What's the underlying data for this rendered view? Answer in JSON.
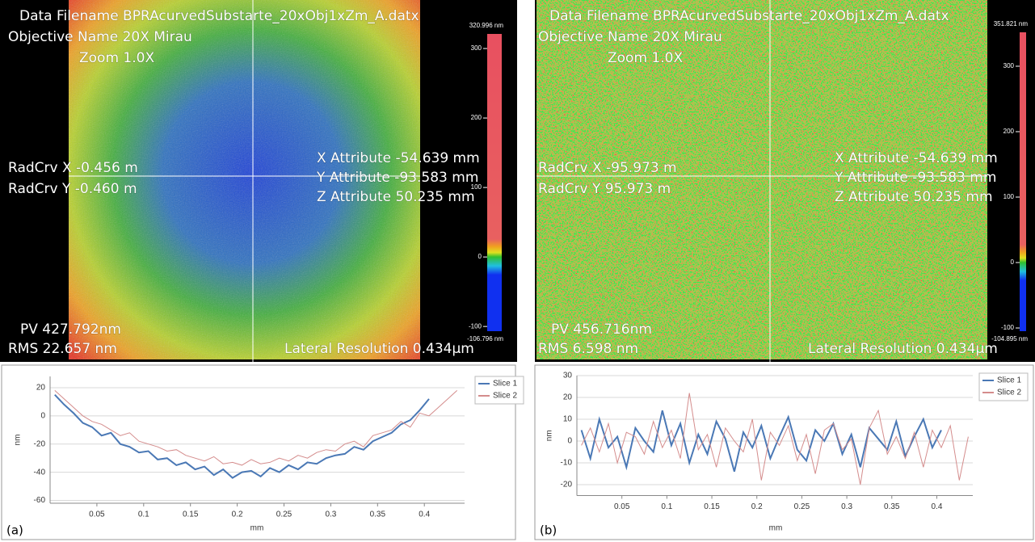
{
  "panel_labels": [
    "(a)",
    "(b)"
  ],
  "maps": [
    {
      "filename": "Data Filename BPRAcurvedSubstarte_20xObj1xZm_A.datx",
      "objective": "Objective Name 20X Mirau",
      "zoom": "Zoom 1.0X",
      "radcrv_x": "RadCrv X -0.456  m",
      "radcrv_y": "RadCrv Y -0.460  m",
      "x_attr": "X Attribute -54.639  mm",
      "y_attr": "Y Attribute -93.583  mm",
      "z_attr": "Z Attribute  50.235  mm",
      "pv": "PV 427.792nm",
      "rms": "RMS 22.657  nm",
      "lateral": "Lateral Resolution 0.434µm",
      "colorbar": {
        "max_label": "320.996 nm",
        "min_label": "-106.796 nm",
        "lim": [
          -106.796,
          320.996
        ],
        "ticks": [
          300,
          200,
          100,
          0,
          -100
        ]
      }
    },
    {
      "filename": "Data Filename BPRAcurvedSubstarte_20xObj1xZm_A.datx",
      "objective": "Objective Name 20X Mirau",
      "zoom": "Zoom 1.0X",
      "radcrv_x": "RadCrv X -95.973  m",
      "radcrv_y": "RadCrv Y  95.973  m",
      "x_attr": "X Attribute -54.639  mm",
      "y_attr": "Y Attribute -93.583  mm",
      "z_attr": "Z Attribute  50.235  mm",
      "pv": "PV 456.716nm",
      "rms": "RMS 6.598    nm",
      "lateral": "Lateral Resolution 0.434µm",
      "colorbar": {
        "max_label": "351.821 nm",
        "min_label": "-104.895 nm",
        "lim": [
          -104.895,
          351.821
        ],
        "ticks": [
          300,
          200,
          100,
          0,
          -100
        ]
      }
    }
  ],
  "chart_data": [
    {
      "type": "line",
      "x_label": "mm",
      "y_label": "nm",
      "x": [
        0.005,
        0.015,
        0.025,
        0.035,
        0.045,
        0.055,
        0.065,
        0.075,
        0.085,
        0.095,
        0.105,
        0.115,
        0.125,
        0.135,
        0.145,
        0.155,
        0.165,
        0.175,
        0.185,
        0.195,
        0.205,
        0.215,
        0.225,
        0.235,
        0.245,
        0.255,
        0.265,
        0.275,
        0.285,
        0.295,
        0.305,
        0.315,
        0.325,
        0.335,
        0.345,
        0.355,
        0.365,
        0.375,
        0.385,
        0.395,
        0.405,
        0.415,
        0.425,
        0.435
      ],
      "series": [
        {
          "name": "Slice 1",
          "color": "#4a78b5",
          "values": [
            15,
            8,
            2,
            -5,
            -8,
            -14,
            -12,
            -20,
            -22,
            -26,
            -25,
            -31,
            -30,
            -35,
            -33,
            -38,
            -36,
            -42,
            -38,
            -44,
            -40,
            -39,
            -43,
            -37,
            -40,
            -35,
            -38,
            -33,
            -34,
            -30,
            -28,
            -27,
            -22,
            -24,
            -18,
            -15,
            -12,
            -6,
            -3,
            4,
            12,
            null,
            null,
            null
          ]
        },
        {
          "name": "Slice 2",
          "color": "#d48c8c",
          "values": [
            18,
            12,
            6,
            0,
            -4,
            -6,
            -10,
            -14,
            -12,
            -18,
            -20,
            -22,
            -25,
            -24,
            -28,
            -30,
            -32,
            -29,
            -34,
            -33,
            -35,
            -31,
            -34,
            -33,
            -30,
            -32,
            -28,
            -30,
            -26,
            -24,
            -25,
            -20,
            -18,
            -22,
            -14,
            -12,
            -10,
            -4,
            -8,
            2,
            0,
            6,
            12,
            18
          ]
        }
      ],
      "xlim": [
        0,
        0.443
      ],
      "xticks": [
        0.05,
        0.1,
        0.15,
        0.2,
        0.25,
        0.3,
        0.35,
        0.4
      ],
      "ylim": [
        -62,
        28
      ],
      "yticks": [
        -60,
        -40,
        -20,
        0,
        20
      ],
      "grid": true,
      "legend": "right"
    },
    {
      "type": "line",
      "x_label": "mm",
      "y_label": "nm",
      "x": [
        0.005,
        0.015,
        0.025,
        0.035,
        0.045,
        0.055,
        0.065,
        0.075,
        0.085,
        0.095,
        0.105,
        0.115,
        0.125,
        0.135,
        0.145,
        0.155,
        0.165,
        0.175,
        0.185,
        0.195,
        0.205,
        0.215,
        0.225,
        0.235,
        0.245,
        0.255,
        0.265,
        0.275,
        0.285,
        0.295,
        0.305,
        0.315,
        0.325,
        0.335,
        0.345,
        0.355,
        0.365,
        0.375,
        0.385,
        0.395,
        0.405,
        0.415,
        0.425,
        0.435
      ],
      "series": [
        {
          "name": "Slice 1",
          "color": "#4a78b5",
          "values": [
            5,
            -8,
            10,
            -3,
            2,
            -12,
            6,
            0,
            -5,
            14,
            -2,
            8,
            -10,
            3,
            -6,
            9,
            1,
            -14,
            4,
            -3,
            7,
            -8,
            2,
            11,
            -4,
            -9,
            5,
            0,
            8,
            -6,
            3,
            -12,
            6,
            1,
            -4,
            9,
            -7,
            2,
            10,
            -3,
            5,
            null,
            null,
            null
          ]
        },
        {
          "name": "Slice 2",
          "color": "#d48c8c",
          "values": [
            -2,
            6,
            -5,
            8,
            -10,
            4,
            2,
            -6,
            9,
            -3,
            5,
            -8,
            22,
            -4,
            3,
            -12,
            6,
            0,
            -5,
            10,
            -18,
            4,
            -2,
            7,
            -9,
            3,
            -15,
            5,
            8,
            -4,
            1,
            -20,
            6,
            14,
            -6,
            2,
            -8,
            4,
            -12,
            5,
            -3,
            7,
            -18,
            2
          ]
        }
      ],
      "xlim": [
        0,
        0.44
      ],
      "xticks": [
        0.05,
        0.1,
        0.15,
        0.2,
        0.25,
        0.3,
        0.35,
        0.4
      ],
      "ylim": [
        -25,
        30
      ],
      "yticks": [
        -20,
        -10,
        0,
        10,
        20,
        30
      ],
      "grid": true,
      "legend": "right"
    }
  ]
}
